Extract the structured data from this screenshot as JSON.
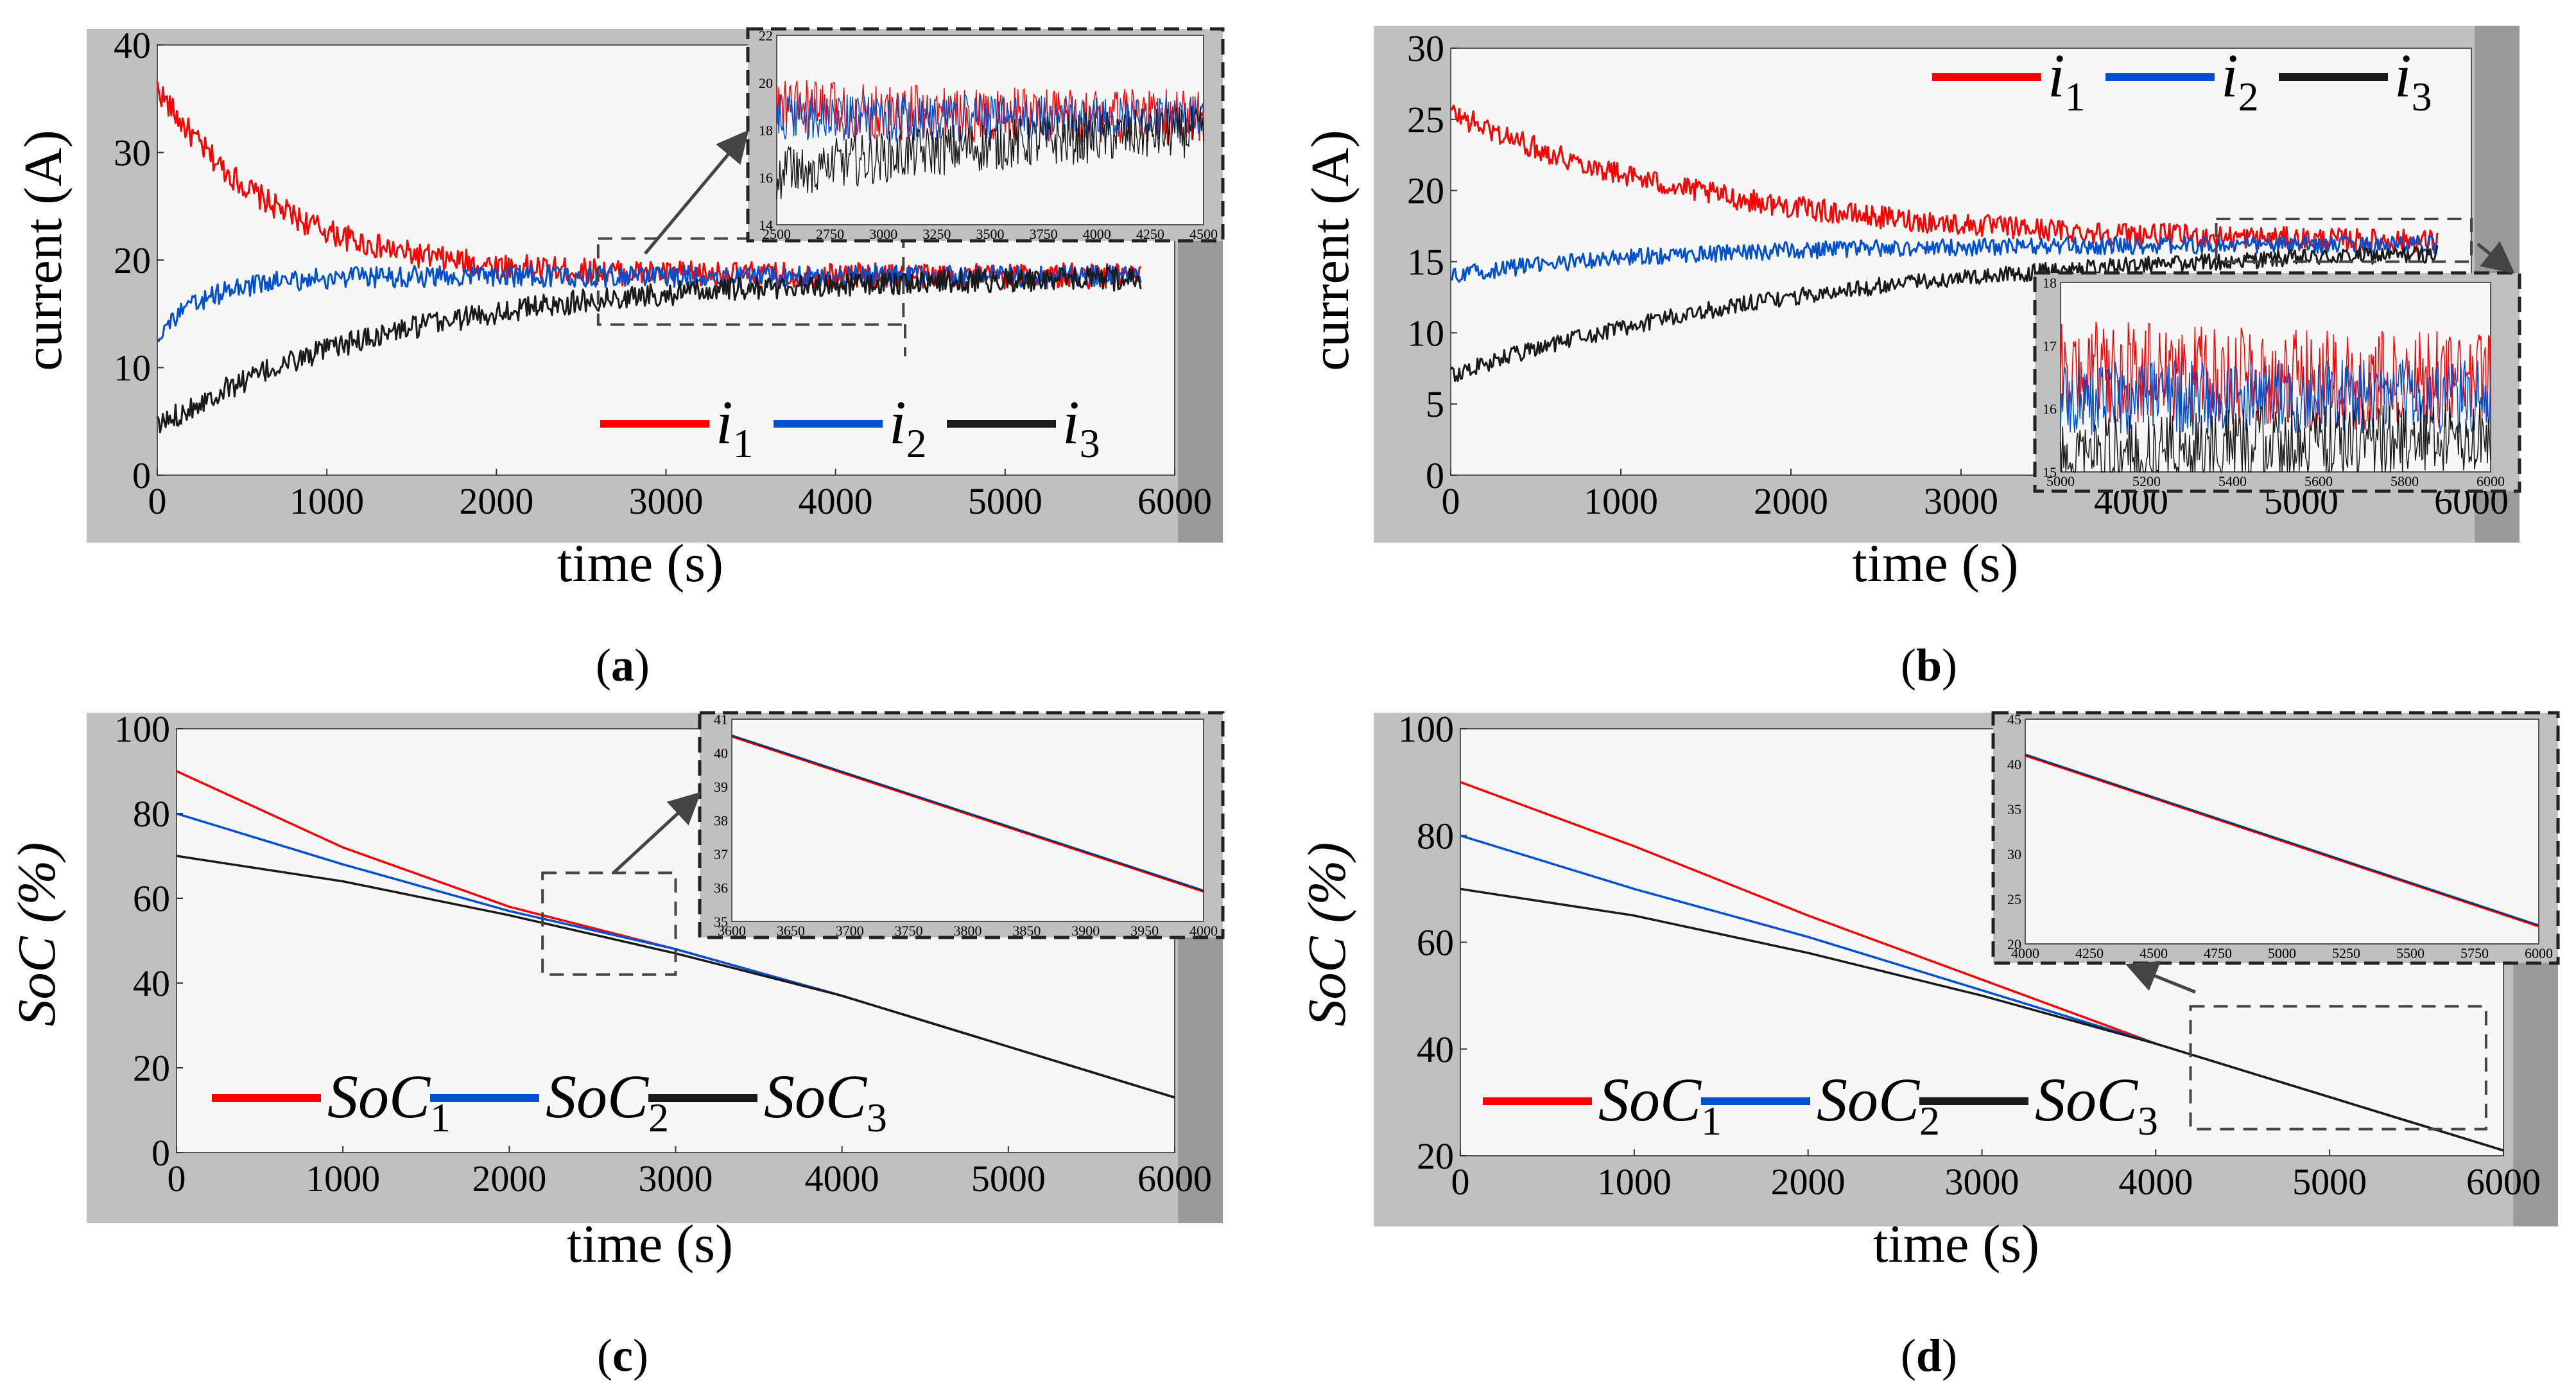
{
  "colors": {
    "red": "#ff0000",
    "blue": "#0050d0",
    "black": "#1a1a1a",
    "frame_grey": "#c0c0c0",
    "plot_bg": "#f7f7f7",
    "dark_bar": "#9a9a9a"
  },
  "chart_data": [
    {
      "panel": "a",
      "caption_letter": "a",
      "type": "line",
      "xlabel": "time (s)",
      "ylabel": "current (A)",
      "xlim": [
        0,
        6000
      ],
      "ylim": [
        0,
        40
      ],
      "xticks": [
        "0",
        "1000",
        "2000",
        "3000",
        "4000",
        "5000",
        "6000"
      ],
      "yticks": [
        "0",
        "10",
        "20",
        "30",
        "40"
      ],
      "legend_position": "bottom-right",
      "legend": [
        {
          "main": "i",
          "sub": "1",
          "color": "red"
        },
        {
          "main": "i",
          "sub": "2",
          "color": "blue"
        },
        {
          "main": "i",
          "sub": "3",
          "color": "black"
        }
      ],
      "series": [
        {
          "name": "i1",
          "color": "red",
          "start": 36,
          "end": 18.5,
          "tau": 700,
          "noise": 1.2
        },
        {
          "name": "i2",
          "color": "blue",
          "start": 13,
          "end": 18.5,
          "tau": 300,
          "noise": 1.0
        },
        {
          "name": "i3",
          "color": "black",
          "start": 4.5,
          "end": 18.5,
          "tau": 1400,
          "noise": 1.1
        }
      ],
      "zoom_box": {
        "x": [
          2600,
          4400
        ],
        "y": [
          14,
          22
        ]
      },
      "inset": {
        "xlim": [
          2500,
          4500
        ],
        "ylim": [
          14,
          22
        ],
        "xticks": [
          "2500",
          "2750",
          "3000",
          "3250",
          "3500",
          "3750",
          "4000",
          "4250",
          "4500"
        ],
        "yticks": [
          "14",
          "16",
          "18",
          "20",
          "22"
        ]
      }
    },
    {
      "panel": "b",
      "caption_letter": "b",
      "type": "line",
      "xlabel": "time (s)",
      "ylabel": "current (A)",
      "xlim": [
        0,
        6000
      ],
      "ylim": [
        0,
        30
      ],
      "xticks": [
        "0",
        "1000",
        "2000",
        "3000",
        "4000",
        "5000",
        "6000"
      ],
      "yticks": [
        "0",
        "5",
        "10",
        "15",
        "20",
        "25",
        "30"
      ],
      "legend_position": "top-right",
      "legend": [
        {
          "main": "i",
          "sub": "1",
          "color": "red"
        },
        {
          "main": "i",
          "sub": "2",
          "color": "blue"
        },
        {
          "main": "i",
          "sub": "3",
          "color": "black"
        }
      ],
      "series": [
        {
          "name": "i1",
          "color": "red",
          "start": 25.5,
          "end": 16.2,
          "tau": 1600,
          "noise": 0.8
        },
        {
          "name": "i2",
          "color": "blue",
          "start": 14,
          "end": 16.2,
          "tau": 1200,
          "noise": 0.6
        },
        {
          "name": "i3",
          "color": "black",
          "start": 7,
          "end": 16.2,
          "tau": 2200,
          "noise": 0.6
        }
      ],
      "zoom_box": {
        "x": [
          4500,
          6000
        ],
        "y": [
          15,
          18
        ]
      },
      "inset": {
        "xlim": [
          5000,
          6000
        ],
        "ylim": [
          15,
          18
        ],
        "xticks": [
          "5000",
          "5200",
          "5400",
          "5600",
          "5800",
          "6000"
        ],
        "yticks": [
          "15",
          "16",
          "17",
          "18"
        ]
      }
    },
    {
      "panel": "c",
      "caption_letter": "c",
      "type": "line",
      "xlabel": "time (s)",
      "ylabel": "SoC (%)",
      "xlim": [
        0,
        6000
      ],
      "ylim": [
        0,
        100
      ],
      "xticks": [
        "0",
        "1000",
        "2000",
        "3000",
        "4000",
        "5000",
        "6000"
      ],
      "yticks": [
        "0",
        "20",
        "40",
        "60",
        "80",
        "100"
      ],
      "legend_position": "bottom-left",
      "legend": [
        {
          "main": "SoC",
          "sub": "1",
          "color": "red"
        },
        {
          "main": "SoC",
          "sub": "2",
          "color": "blue"
        },
        {
          "main": "SoC",
          "sub": "3",
          "color": "black"
        }
      ],
      "series": [
        {
          "name": "SoC1",
          "color": "red",
          "x": [
            0,
            1000,
            2000,
            3000,
            4000,
            5000,
            6000
          ],
          "y": [
            90,
            72,
            58,
            48,
            37,
            25,
            13
          ]
        },
        {
          "name": "SoC2",
          "color": "blue",
          "x": [
            0,
            1000,
            2000,
            3000,
            4000,
            5000,
            6000
          ],
          "y": [
            80,
            68,
            57,
            48,
            37,
            25,
            13
          ]
        },
        {
          "name": "SoC3",
          "color": "black",
          "x": [
            0,
            1000,
            2000,
            3000,
            4000,
            5000,
            6000
          ],
          "y": [
            70,
            64,
            56,
            47,
            37,
            25,
            13
          ]
        }
      ],
      "zoom_box": {
        "x": [
          2200,
          3000
        ],
        "y": [
          42,
          66
        ]
      },
      "inset": {
        "xlim": [
          3600,
          4000
        ],
        "ylim": [
          35,
          41
        ],
        "xticks": [
          "3600",
          "3650",
          "3700",
          "3750",
          "3800",
          "3850",
          "3900",
          "3950",
          "4000"
        ],
        "yticks": [
          "35",
          "36",
          "37",
          "38",
          "39",
          "40",
          "41"
        ],
        "lines": [
          {
            "x": [
              3600,
              4000
            ],
            "y": [
              40.5,
              35.9
            ]
          }
        ]
      }
    },
    {
      "panel": "d",
      "caption_letter": "d",
      "type": "line",
      "xlabel": "time (s)",
      "ylabel": "SoC (%)",
      "xlim": [
        0,
        6000
      ],
      "ylim": [
        20,
        100
      ],
      "xticks": [
        "0",
        "1000",
        "2000",
        "3000",
        "4000",
        "5000",
        "6000"
      ],
      "yticks": [
        "20",
        "40",
        "60",
        "80",
        "100"
      ],
      "legend_position": "bottom-left",
      "legend": [
        {
          "main": "SoC",
          "sub": "1",
          "color": "red"
        },
        {
          "main": "SoC",
          "sub": "2",
          "color": "blue"
        },
        {
          "main": "SoC",
          "sub": "3",
          "color": "black"
        }
      ],
      "series": [
        {
          "name": "SoC1",
          "color": "red",
          "x": [
            0,
            1000,
            2000,
            3000,
            4000,
            5000,
            6000
          ],
          "y": [
            90,
            78,
            65,
            53,
            41,
            31,
            21
          ]
        },
        {
          "name": "SoC2",
          "color": "blue",
          "x": [
            0,
            1000,
            2000,
            3000,
            4000,
            5000,
            6000
          ],
          "y": [
            80,
            70,
            61,
            51,
            41,
            31,
            21
          ]
        },
        {
          "name": "SoC3",
          "color": "black",
          "x": [
            0,
            1000,
            2000,
            3000,
            4000,
            5000,
            6000
          ],
          "y": [
            70,
            65,
            58,
            50,
            41,
            31,
            21
          ]
        }
      ],
      "zoom_box": {
        "x": [
          4200,
          5900
        ],
        "y": [
          25,
          48
        ]
      },
      "inset": {
        "xlim": [
          4000,
          6000
        ],
        "ylim": [
          20,
          45
        ],
        "xticks": [
          "4000",
          "4250",
          "4500",
          "4750",
          "5000",
          "5250",
          "5500",
          "5750",
          "6000"
        ],
        "yticks": [
          "20",
          "25",
          "30",
          "35",
          "40",
          "45"
        ],
        "lines": [
          {
            "x": [
              4000,
              6000
            ],
            "y": [
              41,
              22
            ]
          }
        ]
      }
    }
  ]
}
